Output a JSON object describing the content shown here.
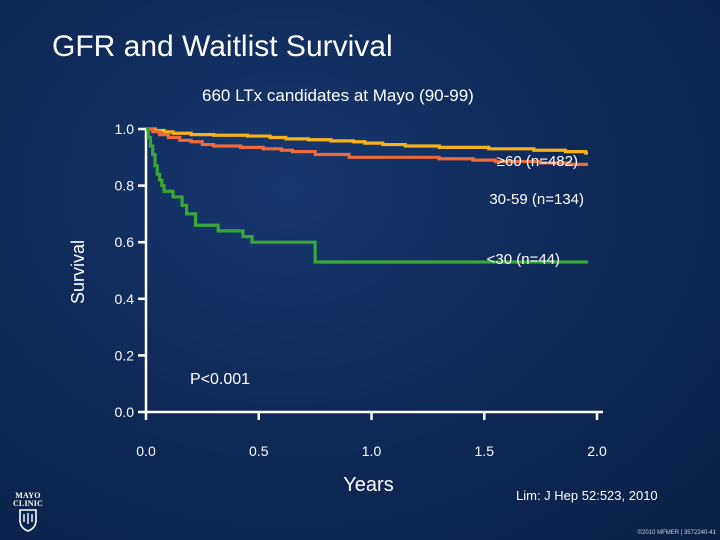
{
  "slide": {
    "title": "GFR and Waitlist Survival",
    "subtitle": "660 LTx candidates at Mayo (90-99)",
    "citation": "Lim: J Hep 52:523, 2010",
    "copyright": "©2010 MFMER | 3572240-41",
    "logo_lines": [
      "MAYO",
      "CLINIC"
    ]
  },
  "colors": {
    "background": "#0f2a5a",
    "axis": "#ffffff",
    "series_ge60": "#f5b21a",
    "series_30_59": "#ec6a3c",
    "series_lt30": "#3aa63a"
  },
  "chart_data": {
    "type": "line",
    "step": true,
    "title": "",
    "xlabel": "Years",
    "ylabel": "Survival",
    "xlim": [
      0,
      2
    ],
    "ylim": [
      0,
      1
    ],
    "x_ticks": [
      "0.0",
      "0.5",
      "1.0",
      "1.5",
      "2.0"
    ],
    "y_ticks": [
      "0.0",
      "0.2",
      "0.4",
      "0.6",
      "0.8",
      "1.0"
    ],
    "annotation": "P<0.001",
    "series": [
      {
        "name": "≥60 (n=482)",
        "color": "#f5b21a",
        "x": [
          0,
          0.04,
          0.08,
          0.12,
          0.2,
          0.3,
          0.45,
          0.55,
          0.62,
          0.72,
          0.82,
          0.92,
          0.97,
          1.05,
          1.15,
          1.3,
          1.52,
          1.72,
          1.86,
          1.95,
          1.96
        ],
        "y": [
          1.0,
          0.995,
          0.99,
          0.985,
          0.98,
          0.978,
          0.975,
          0.97,
          0.965,
          0.962,
          0.958,
          0.955,
          0.95,
          0.945,
          0.94,
          0.935,
          0.93,
          0.925,
          0.92,
          0.915,
          0.915
        ]
      },
      {
        "name": "30-59 (n=134)",
        "color": "#ec6a3c",
        "x": [
          0,
          0.03,
          0.06,
          0.1,
          0.15,
          0.2,
          0.25,
          0.3,
          0.42,
          0.52,
          0.6,
          0.65,
          0.75,
          0.9,
          1.3,
          1.45,
          1.55,
          1.75,
          1.88,
          1.96
        ],
        "y": [
          1.0,
          0.99,
          0.98,
          0.97,
          0.96,
          0.955,
          0.945,
          0.94,
          0.935,
          0.93,
          0.925,
          0.92,
          0.91,
          0.9,
          0.895,
          0.89,
          0.885,
          0.88,
          0.875,
          0.875
        ]
      },
      {
        "name": "<30 (n=44)",
        "color": "#3aa63a",
        "x": [
          0,
          0.01,
          0.02,
          0.03,
          0.04,
          0.05,
          0.06,
          0.07,
          0.08,
          0.12,
          0.16,
          0.18,
          0.22,
          0.32,
          0.43,
          0.47,
          0.75,
          1.96
        ],
        "y": [
          1.0,
          0.97,
          0.94,
          0.91,
          0.87,
          0.84,
          0.82,
          0.8,
          0.78,
          0.76,
          0.73,
          0.7,
          0.66,
          0.64,
          0.62,
          0.6,
          0.53,
          0.53
        ]
      }
    ]
  }
}
